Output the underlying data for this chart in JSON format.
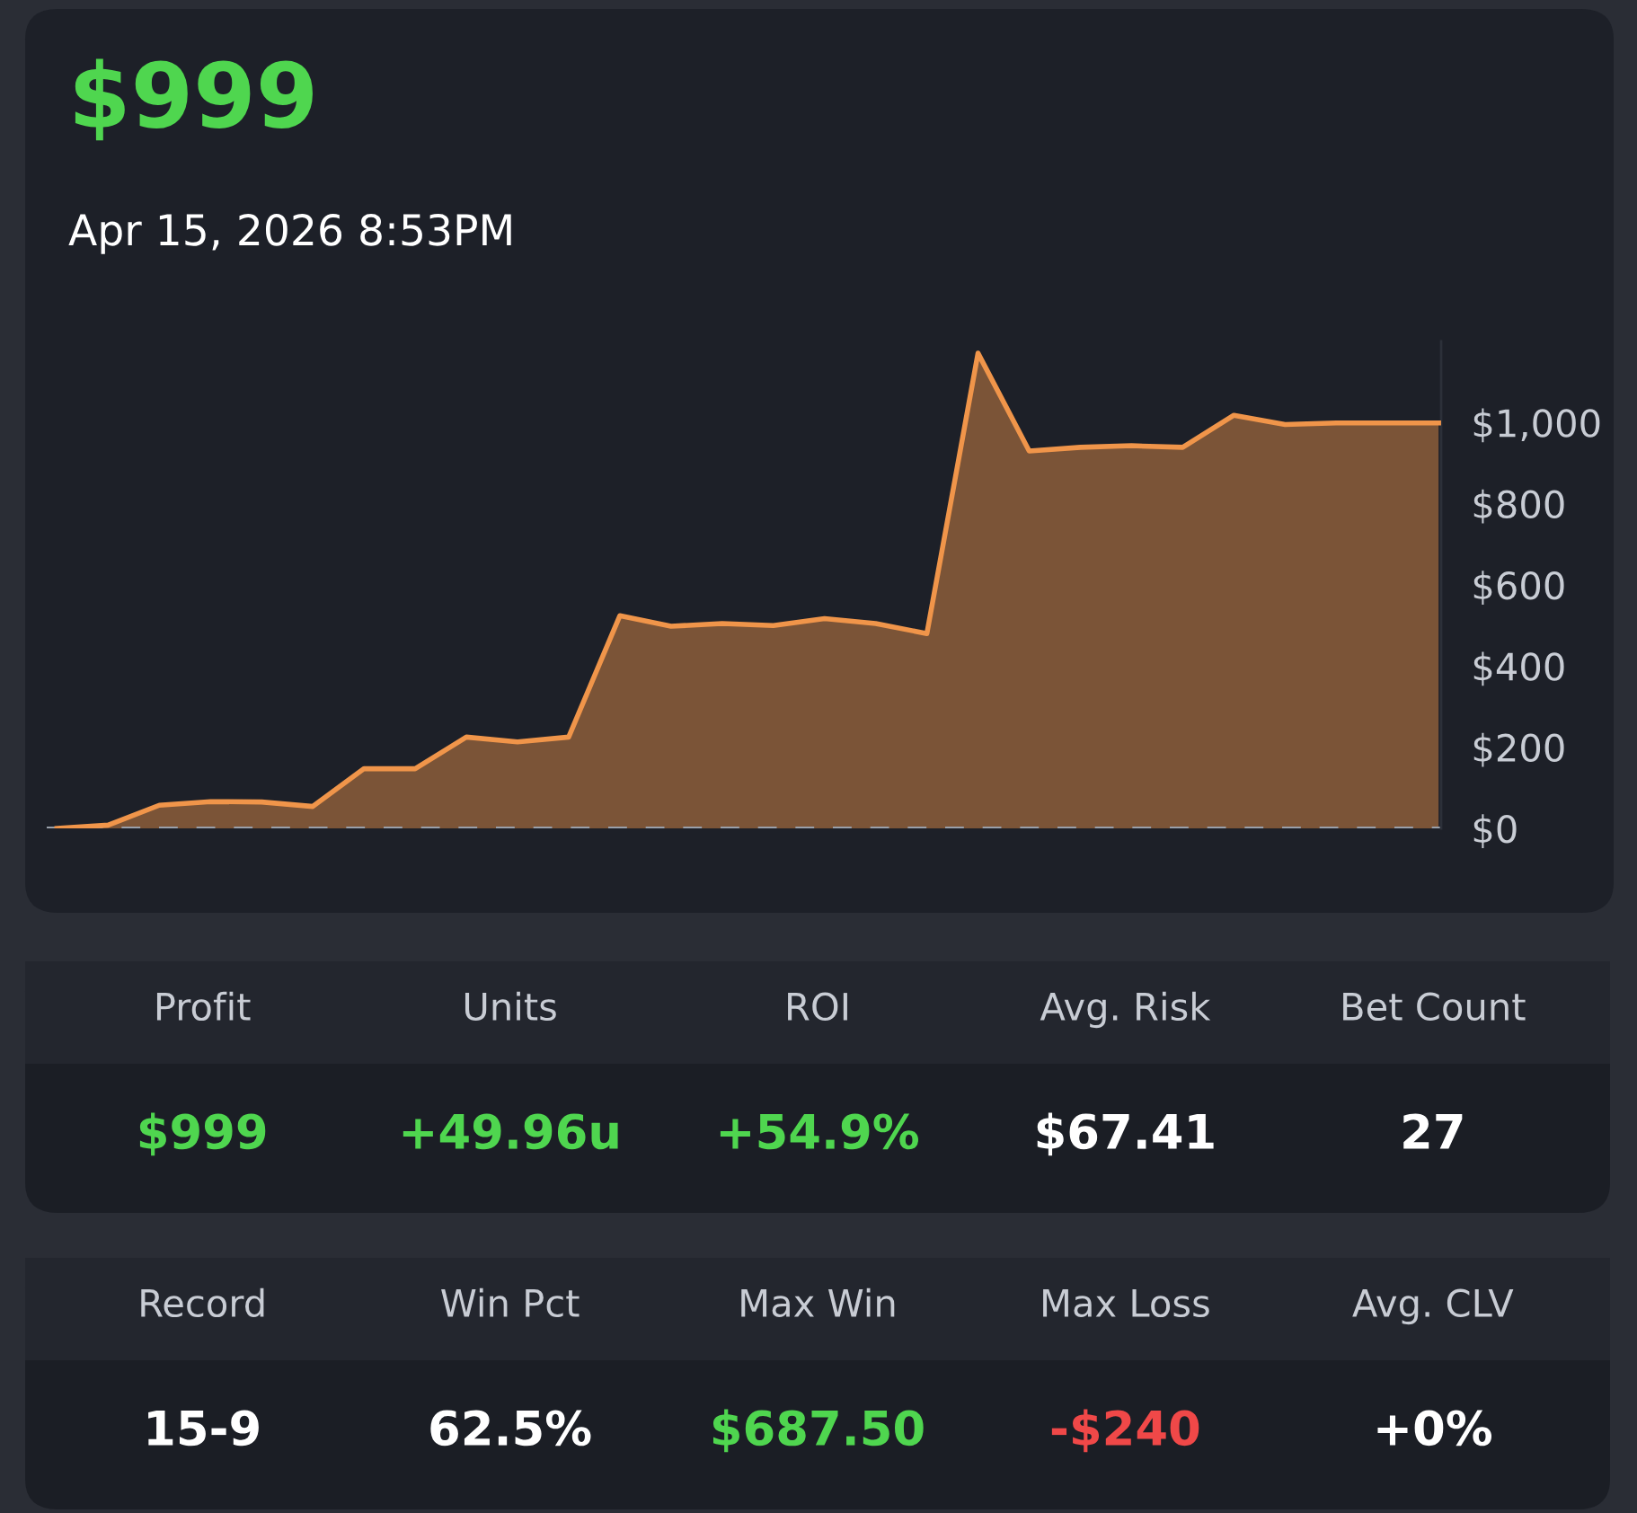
{
  "chart_data": [
    {
      "type": "area",
      "title": "$999",
      "subtitle": "Apr 15, 2026 8:53PM",
      "categories": [
        null,
        null,
        null,
        null,
        null,
        null,
        null,
        null,
        null,
        null,
        null,
        null,
        null,
        null,
        null,
        null,
        null,
        null,
        null,
        null,
        null,
        null,
        null,
        null,
        null,
        null,
        null,
        null
      ],
      "series": [
        {
          "color": "#f0954a",
          "values": [
            0,
            8,
            57,
            66,
            65,
            54,
            147,
            147,
            225,
            213,
            225,
            524,
            498,
            505,
            500,
            517,
            505,
            480,
            1171,
            930,
            939,
            943,
            939,
            1018,
            995,
            999,
            999,
            999
          ]
        }
      ],
      "ylim": [
        0,
        1200
      ],
      "yticks": [
        {
          "value": 0,
          "label": "$0"
        },
        {
          "value": 200,
          "label": "$200"
        },
        {
          "value": 400,
          "label": "$400"
        },
        {
          "value": 600,
          "label": "$600"
        },
        {
          "value": 800,
          "label": "$800"
        },
        {
          "value": 1000,
          "label": "$1,000"
        }
      ],
      "ref_lines": [
        {
          "axis": "y",
          "value": 0,
          "color": "#9aa0aa",
          "line_style": "dashed"
        }
      ],
      "grid": false,
      "legend": false,
      "marker": "none",
      "line_style": "solid"
    },
    {
      "type": "other",
      "categories": [
        "Profit",
        "Units",
        "ROI",
        "Avg. Risk",
        "Bet Count"
      ],
      "annotations": [
        "$999",
        "+49.96u",
        "+54.9%",
        "$67.41",
        "27"
      ],
      "colors": [
        "#4fd64f",
        "#4fd64f",
        "#4fd64f",
        "#ffffff",
        "#ffffff"
      ]
    },
    {
      "type": "other",
      "categories": [
        "Record",
        "Win Pct",
        "Max Win",
        "Max Loss",
        "Avg. CLV"
      ],
      "annotations": [
        "15-9",
        "62.5%",
        "$687.50",
        "-$240",
        "+0%"
      ],
      "colors": [
        "#ffffff",
        "#ffffff",
        "#4fd64f",
        "#f04848",
        "#ffffff"
      ]
    }
  ]
}
